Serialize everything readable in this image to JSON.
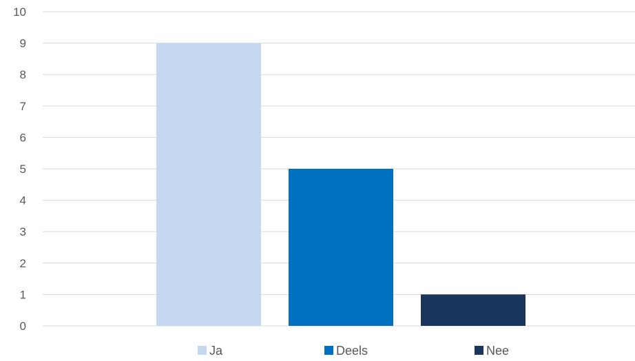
{
  "chart_data": {
    "type": "bar",
    "series": [
      {
        "name": "Ja",
        "value": 9,
        "color": "#c5d8f0"
      },
      {
        "name": "Deels",
        "value": 5,
        "color": "#0070c0"
      },
      {
        "name": "Nee",
        "value": 1,
        "color": "#1a365d"
      }
    ],
    "ylim": [
      0,
      10
    ],
    "yticks": [
      0,
      1,
      2,
      3,
      4,
      5,
      6,
      7,
      8,
      9,
      10
    ],
    "grid": true,
    "legend_position": "bottom",
    "title": "",
    "xlabel": "",
    "ylabel": ""
  }
}
